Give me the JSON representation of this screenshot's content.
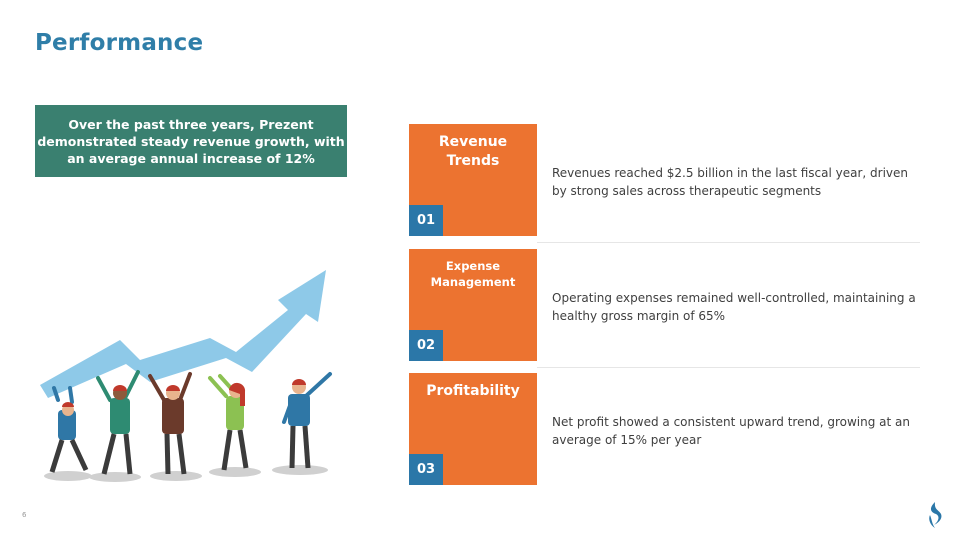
{
  "slide": {
    "title": "Performance",
    "callout": "Over the past three years, Prezent demonstrated steady revenue growth, with an average annual increase of 12%",
    "page_number": "6"
  },
  "items": [
    {
      "title": "Revenue Trends",
      "number": "01",
      "description": "Revenues reached $2.5 billion in the last fiscal year, driven by strong sales across therapeutic segments"
    },
    {
      "title": "Expense Management",
      "number": "02",
      "description": "Operating expenses remained well-controlled, maintaining a healthy gross margin of 65%"
    },
    {
      "title": "Profitability",
      "number": "03",
      "description": "Net profit showed a consistent upward trend, growing at an average of 15% per year"
    }
  ],
  "colors": {
    "title": "#2f7ea8",
    "callout_bg": "#3a8070",
    "card_bg": "#ec7330",
    "number_bg": "#2b77a8",
    "arrow": "#8ec9e8"
  },
  "icons": {
    "illustration": "team-lifting-growth-arrow-illustration",
    "logo": "brand-logo-icon"
  }
}
